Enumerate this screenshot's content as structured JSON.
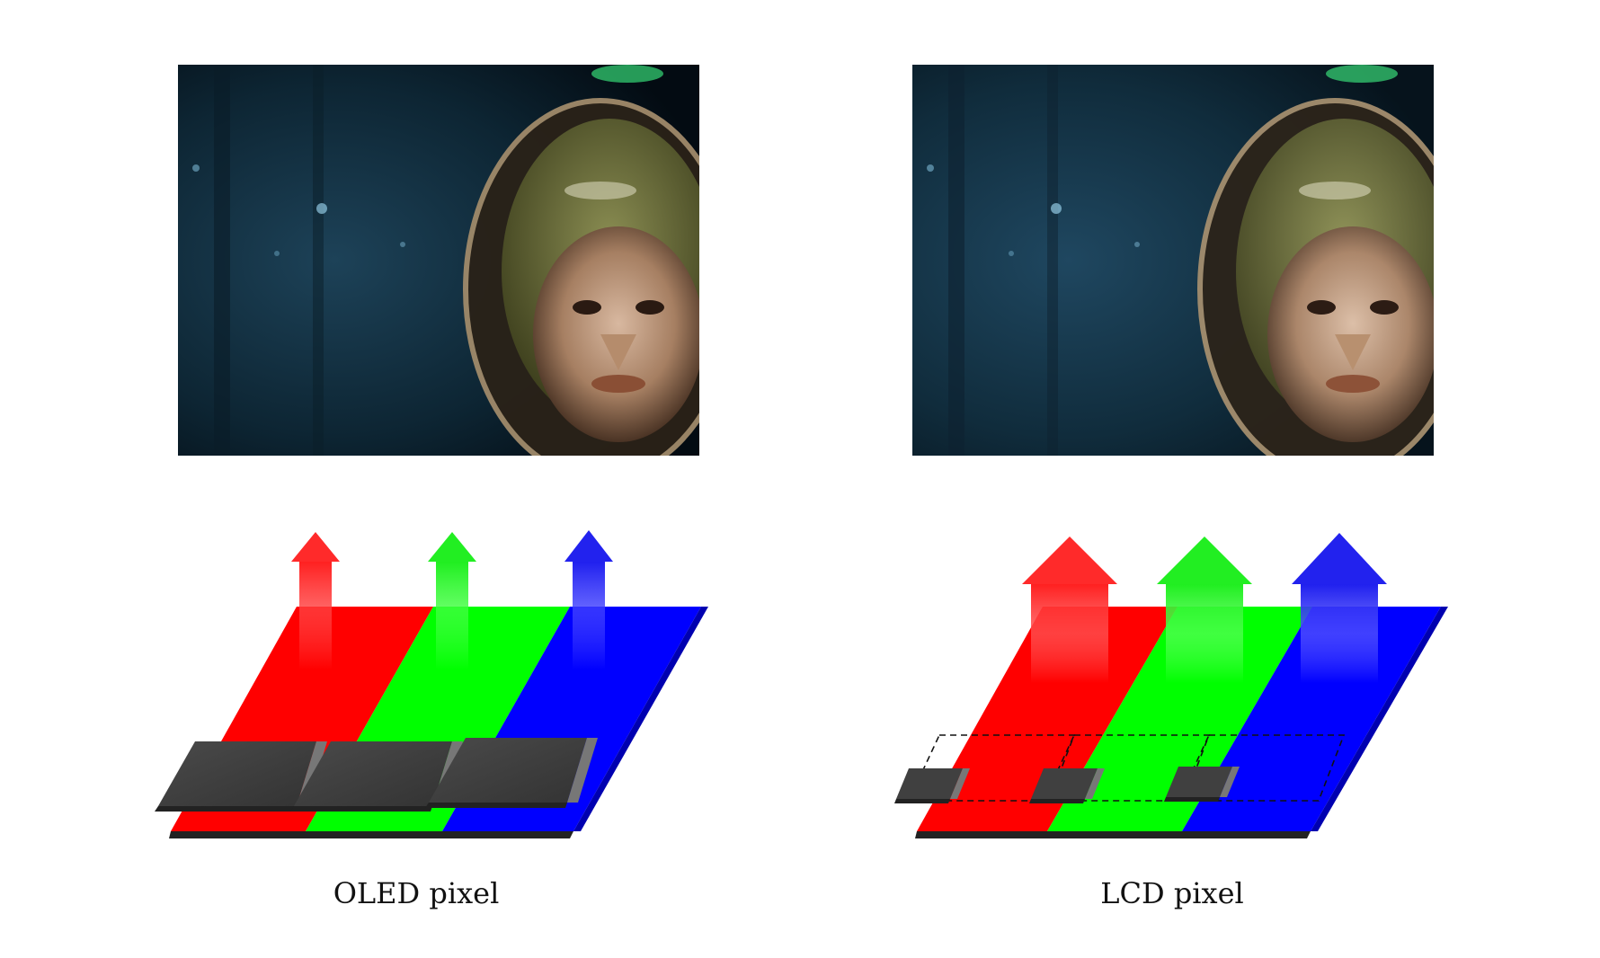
{
  "captions": {
    "oled": "OLED pixel",
    "lcd": "LCD pixel"
  },
  "colors": {
    "red": "#ff0000",
    "green": "#00ff00",
    "blue": "#0000ff",
    "emitter": "#404040",
    "background": "#ffffff"
  },
  "images": {
    "left": "astronaut-photo",
    "right": "astronaut-photo"
  }
}
